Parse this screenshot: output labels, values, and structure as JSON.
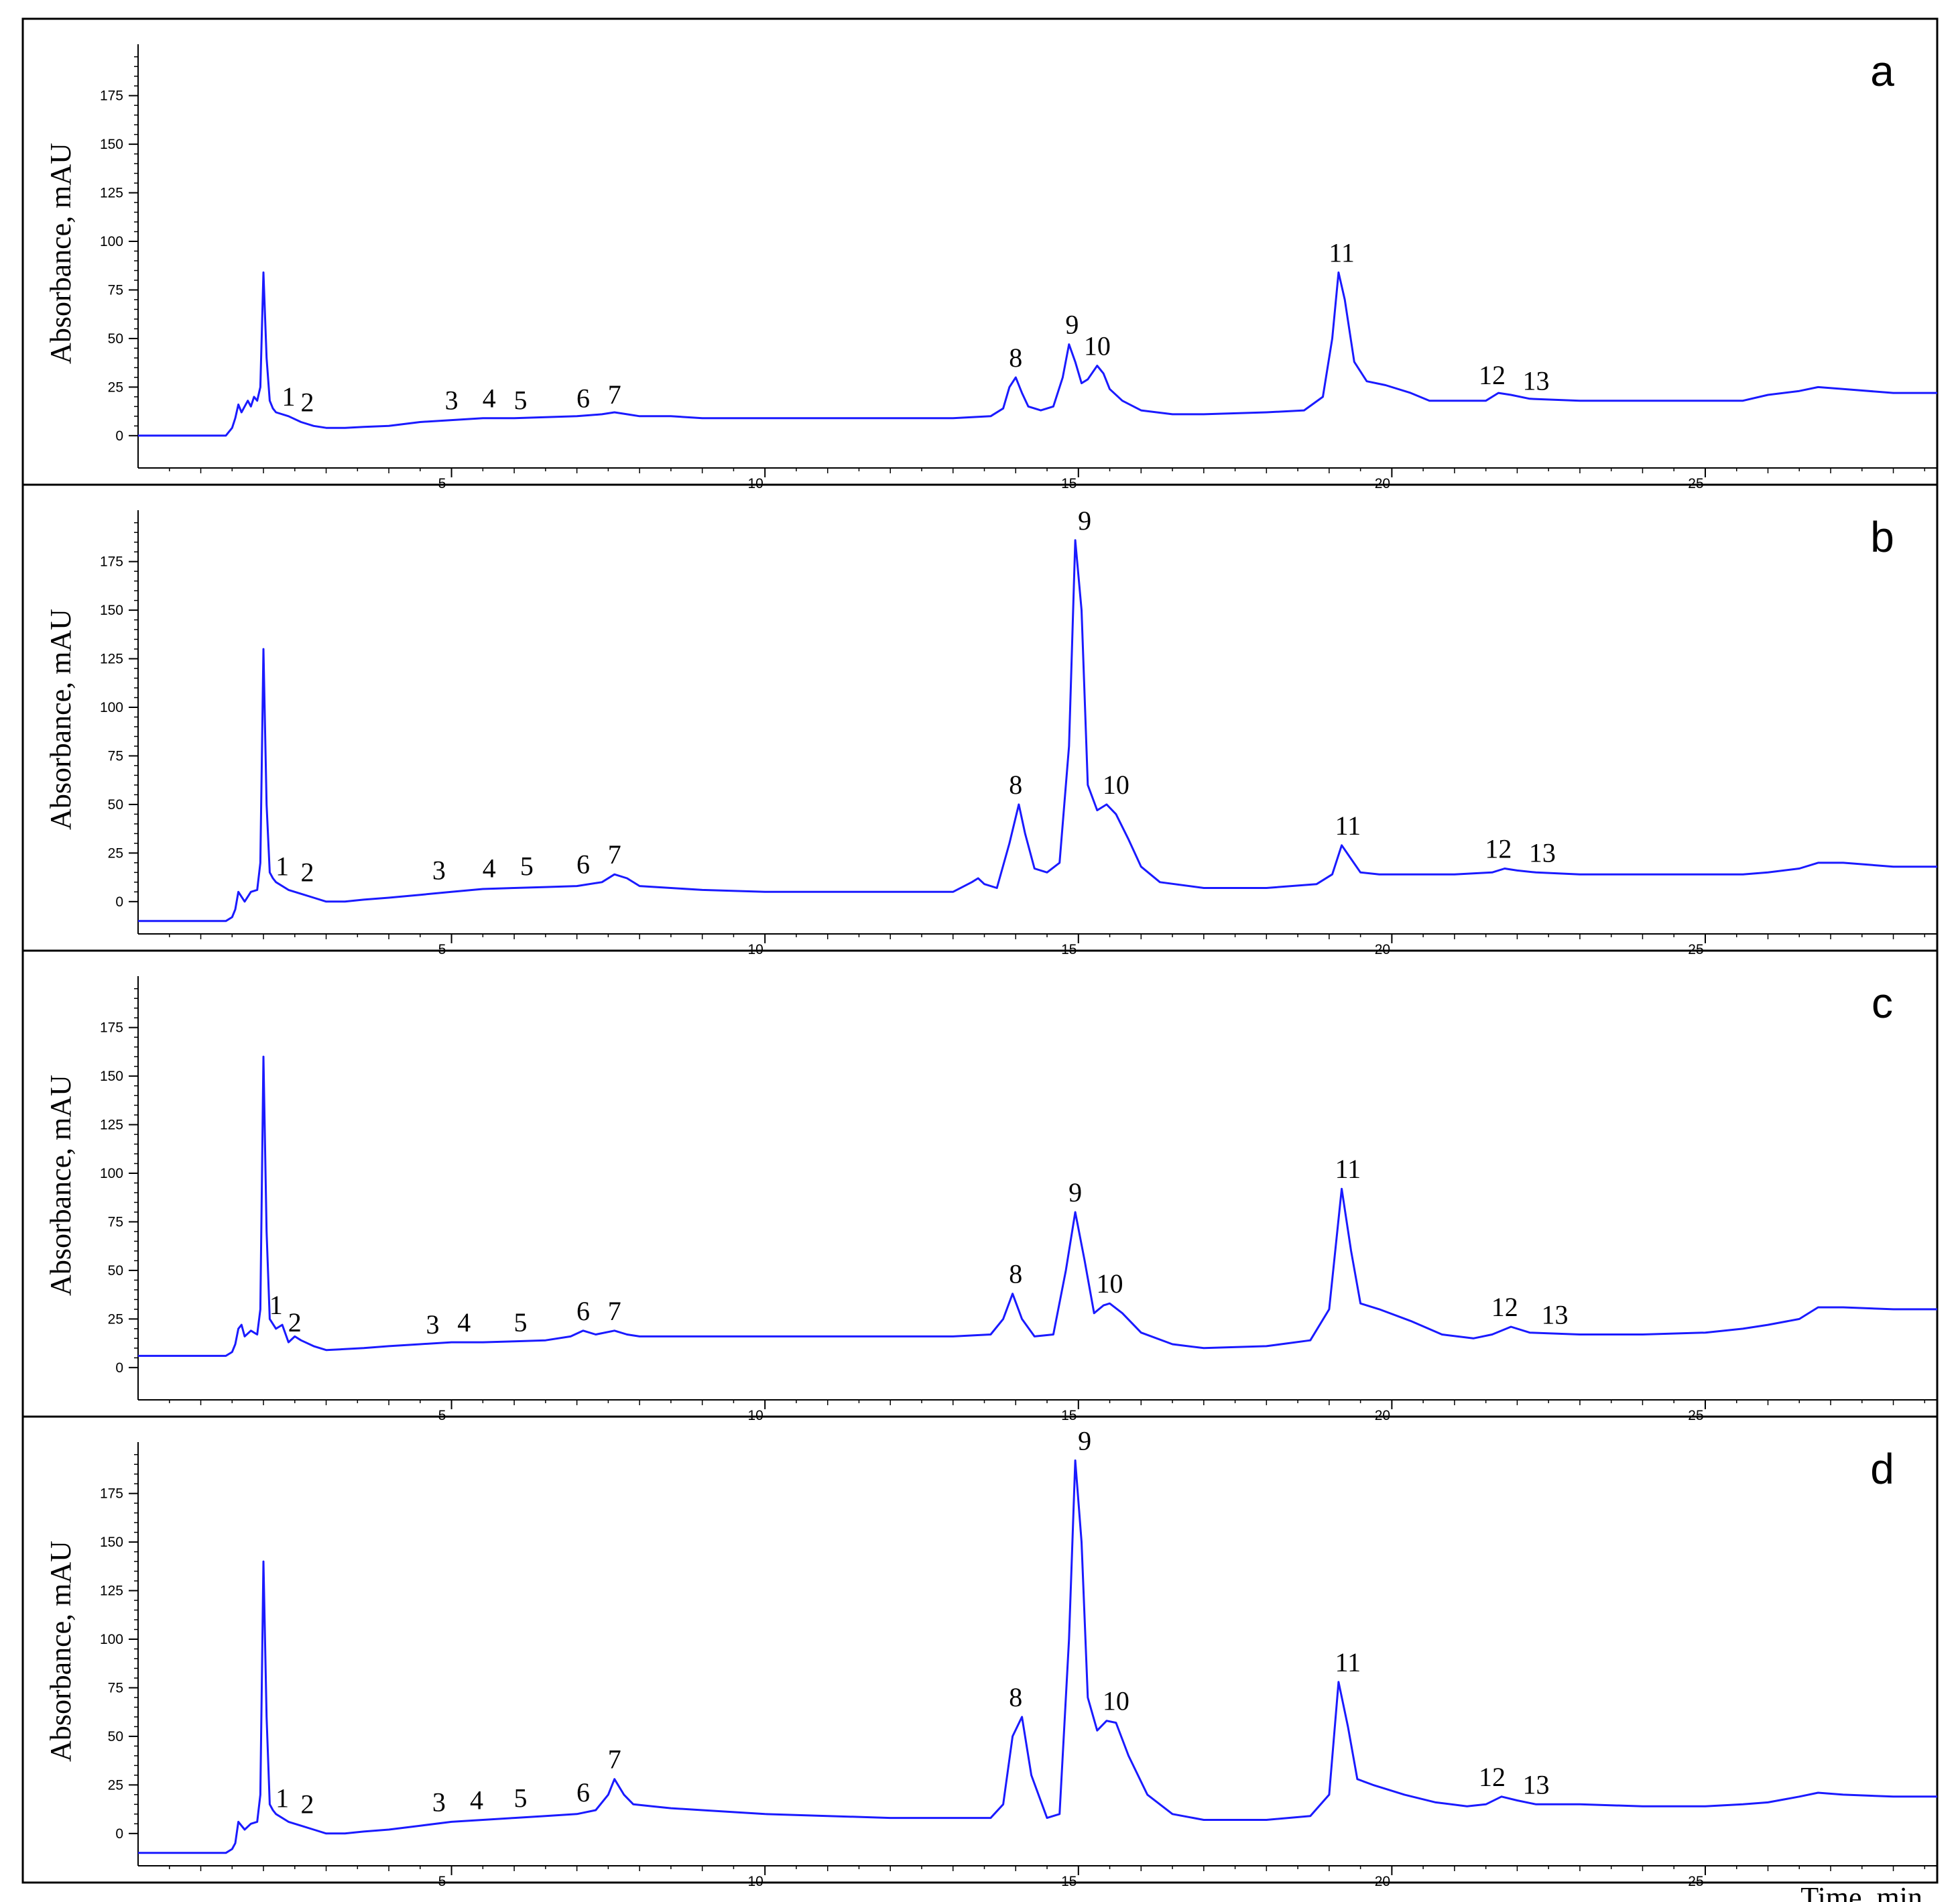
{
  "figure": {
    "x_axis_label": "Time, min",
    "line_color": "#1a1aff"
  },
  "chart_data": [
    {
      "type": "line",
      "panel": "a",
      "ylabel": "Absorbance, mAU",
      "xlim": [
        0,
        28.7
      ],
      "ylim": [
        -8,
        198
      ],
      "x_ticks": [
        5,
        10,
        15,
        20,
        25
      ],
      "y_ticks": [
        0,
        25,
        50,
        75,
        100,
        125,
        150,
        175
      ],
      "peak_labels": [
        {
          "label": "1",
          "x": 2.4,
          "y": 10
        },
        {
          "label": "2",
          "x": 2.7,
          "y": 7
        },
        {
          "label": "3",
          "x": 5.0,
          "y": 8
        },
        {
          "label": "4",
          "x": 5.6,
          "y": 9
        },
        {
          "label": "5",
          "x": 6.1,
          "y": 8
        },
        {
          "label": "6",
          "x": 7.1,
          "y": 9
        },
        {
          "label": "7",
          "x": 7.6,
          "y": 11
        },
        {
          "label": "8",
          "x": 14.0,
          "y": 30
        },
        {
          "label": "9",
          "x": 14.9,
          "y": 47
        },
        {
          "label": "10",
          "x": 15.3,
          "y": 36
        },
        {
          "label": "11",
          "x": 19.2,
          "y": 84
        },
        {
          "label": "12",
          "x": 21.6,
          "y": 21
        },
        {
          "label": "13",
          "x": 22.3,
          "y": 18
        }
      ],
      "series": [
        {
          "x": [
            0,
            1.4,
            1.5,
            1.55,
            1.6,
            1.65,
            1.7,
            1.75,
            1.8,
            1.85,
            1.9,
            1.95,
            2.0,
            2.05,
            2.1,
            2.15,
            2.2,
            2.4,
            2.6,
            2.8,
            3.0,
            3.3,
            3.6,
            4.0,
            4.5,
            5.0,
            5.5,
            6.0,
            6.5,
            7.0,
            7.4,
            7.6,
            7.8,
            8.0,
            8.5,
            9.0,
            10,
            11,
            12,
            13,
            13.6,
            13.8,
            13.9,
            14.0,
            14.1,
            14.2,
            14.4,
            14.6,
            14.75,
            14.85,
            14.95,
            15.05,
            15.15,
            15.3,
            15.4,
            15.5,
            15.7,
            16.0,
            16.5,
            17,
            18,
            18.6,
            18.9,
            19.05,
            19.15,
            19.25,
            19.4,
            19.6,
            19.9,
            20.3,
            20.6,
            21.0,
            21.5,
            21.7,
            21.9,
            22.2,
            23,
            24,
            25,
            25.6,
            26.0,
            26.5,
            26.8,
            27.2,
            28.0,
            28.7
          ],
          "y": [
            0,
            0,
            4,
            9,
            16,
            12,
            15,
            18,
            15,
            20,
            18,
            25,
            84,
            40,
            18,
            14,
            12,
            10,
            7,
            5,
            4,
            4,
            4.5,
            5,
            7,
            8,
            9,
            9,
            9.5,
            10,
            11,
            12,
            11,
            10,
            10,
            9,
            9,
            9,
            9,
            9,
            10,
            14,
            25,
            30,
            22,
            15,
            13,
            15,
            30,
            47,
            38,
            27,
            29,
            36,
            32,
            24,
            18,
            13,
            11,
            11,
            12,
            13,
            20,
            50,
            84,
            70,
            38,
            28,
            26,
            22,
            18,
            18,
            18,
            22,
            21,
            19,
            18,
            18,
            18,
            18,
            21,
            23,
            25,
            24,
            22,
            22
          ]
        }
      ]
    },
    {
      "type": "line",
      "panel": "b",
      "ylabel": "Absorbance, mAU",
      "xlim": [
        0,
        28.7
      ],
      "ylim": [
        -8,
        198
      ],
      "x_ticks": [
        5,
        10,
        15,
        20,
        25
      ],
      "y_ticks": [
        0,
        25,
        50,
        75,
        100,
        125,
        150,
        175
      ],
      "peak_labels": [
        {
          "label": "1",
          "x": 2.3,
          "y": 8
        },
        {
          "label": "2",
          "x": 2.7,
          "y": 5
        },
        {
          "label": "3",
          "x": 4.8,
          "y": 6
        },
        {
          "label": "4",
          "x": 5.6,
          "y": 7
        },
        {
          "label": "5",
          "x": 6.2,
          "y": 8
        },
        {
          "label": "6",
          "x": 7.1,
          "y": 9
        },
        {
          "label": "7",
          "x": 7.6,
          "y": 14
        },
        {
          "label": "8",
          "x": 14.0,
          "y": 50
        },
        {
          "label": "9",
          "x": 15.1,
          "y": 186
        },
        {
          "label": "10",
          "x": 15.6,
          "y": 50
        },
        {
          "label": "11",
          "x": 19.3,
          "y": 29
        },
        {
          "label": "12",
          "x": 21.7,
          "y": 17
        },
        {
          "label": "13",
          "x": 22.4,
          "y": 15
        }
      ],
      "series": [
        {
          "x": [
            0,
            1.4,
            1.5,
            1.55,
            1.6,
            1.7,
            1.8,
            1.9,
            1.95,
            2.0,
            2.05,
            2.1,
            2.15,
            2.2,
            2.4,
            2.6,
            2.8,
            3.0,
            3.3,
            3.6,
            4.0,
            4.5,
            5.0,
            5.5,
            6.0,
            6.5,
            7.0,
            7.4,
            7.6,
            7.8,
            8.0,
            8.5,
            9.0,
            10,
            10.7,
            11,
            12,
            13.0,
            13.3,
            13.4,
            13.5,
            13.7,
            13.9,
            14.05,
            14.15,
            14.3,
            14.5,
            14.7,
            14.85,
            14.95,
            15.05,
            15.15,
            15.3,
            15.45,
            15.6,
            15.8,
            16.0,
            16.3,
            17,
            18,
            18.8,
            19.05,
            19.2,
            19.35,
            19.5,
            19.8,
            20.5,
            21.0,
            21.6,
            21.8,
            22.0,
            22.3,
            23,
            24,
            25,
            25.6,
            26.0,
            26.5,
            26.8,
            27.2,
            28.0,
            28.7
          ],
          "y": [
            -10,
            -10,
            -8,
            -4,
            5,
            0,
            5,
            6,
            20,
            130,
            50,
            15,
            12,
            10,
            6,
            4,
            2,
            0,
            0,
            1,
            2,
            3.5,
            5,
            6.5,
            7,
            7.5,
            8,
            10,
            14,
            12,
            8,
            7,
            6,
            5,
            5,
            5,
            5,
            5,
            10,
            12,
            9,
            7,
            30,
            50,
            35,
            17,
            15,
            20,
            80,
            186,
            150,
            60,
            47,
            50,
            45,
            32,
            18,
            10,
            7,
            7,
            9,
            14,
            29,
            22,
            15,
            14,
            14,
            14,
            15,
            17,
            16,
            15,
            14,
            14,
            14,
            14,
            15,
            17,
            20,
            20,
            18,
            18
          ]
        }
      ]
    },
    {
      "type": "line",
      "panel": "c",
      "ylabel": "Absorbance, mAU",
      "xlim": [
        0,
        28.7
      ],
      "ylim": [
        -8,
        198
      ],
      "x_ticks": [
        5,
        10,
        15,
        20,
        25
      ],
      "y_ticks": [
        0,
        25,
        50,
        75,
        100,
        125,
        150,
        175
      ],
      "peak_labels": [
        {
          "label": "1",
          "x": 2.2,
          "y": 22
        },
        {
          "label": "2",
          "x": 2.5,
          "y": 13
        },
        {
          "label": "3",
          "x": 4.7,
          "y": 12
        },
        {
          "label": "4",
          "x": 5.2,
          "y": 13
        },
        {
          "label": "5",
          "x": 6.1,
          "y": 13
        },
        {
          "label": "6",
          "x": 7.1,
          "y": 19
        },
        {
          "label": "7",
          "x": 7.6,
          "y": 19
        },
        {
          "label": "8",
          "x": 14.0,
          "y": 38
        },
        {
          "label": "9",
          "x": 14.95,
          "y": 80
        },
        {
          "label": "10",
          "x": 15.5,
          "y": 33
        },
        {
          "label": "11",
          "x": 19.3,
          "y": 92
        },
        {
          "label": "12",
          "x": 21.8,
          "y": 21
        },
        {
          "label": "13",
          "x": 22.6,
          "y": 17
        }
      ],
      "series": [
        {
          "x": [
            0,
            1.4,
            1.5,
            1.55,
            1.6,
            1.65,
            1.7,
            1.8,
            1.9,
            1.95,
            2.0,
            2.05,
            2.1,
            2.2,
            2.3,
            2.4,
            2.5,
            2.6,
            2.8,
            3.0,
            3.3,
            3.6,
            4.0,
            4.5,
            5.0,
            5.5,
            6.0,
            6.5,
            6.9,
            7.1,
            7.3,
            7.6,
            7.8,
            8.0,
            9,
            10,
            11,
            12,
            13.0,
            13.6,
            13.8,
            13.95,
            14.1,
            14.3,
            14.6,
            14.8,
            14.95,
            15.1,
            15.25,
            15.4,
            15.5,
            15.7,
            16.0,
            16.5,
            17,
            18,
            18.7,
            19.0,
            19.2,
            19.35,
            19.5,
            19.8,
            20.3,
            20.8,
            21.3,
            21.6,
            21.9,
            22.2,
            23,
            24,
            25,
            25.6,
            26.0,
            26.5,
            26.8,
            27.2,
            28.0,
            28.7
          ],
          "y": [
            6,
            6,
            8,
            12,
            20,
            22,
            16,
            19,
            17,
            30,
            160,
            70,
            25,
            20,
            22,
            13,
            16,
            14,
            11,
            9,
            9.5,
            10,
            11,
            12,
            13,
            13,
            13.5,
            14,
            16,
            19,
            17,
            19,
            17,
            16,
            16,
            16,
            16,
            16,
            16,
            17,
            25,
            38,
            25,
            16,
            17,
            50,
            80,
            55,
            28,
            32,
            33,
            28,
            18,
            12,
            10,
            11,
            14,
            30,
            92,
            60,
            33,
            30,
            24,
            17,
            15,
            17,
            21,
            18,
            17,
            17,
            18,
            20,
            22,
            25,
            31,
            31,
            30,
            30
          ]
        }
      ]
    },
    {
      "type": "line",
      "panel": "d",
      "ylabel": "Absorbance, mAU",
      "xlabel": "Time, min",
      "xlim": [
        0,
        28.7
      ],
      "ylim": [
        -8,
        198
      ],
      "x_ticks": [
        5,
        10,
        15,
        20,
        25
      ],
      "y_ticks": [
        0,
        25,
        50,
        75,
        100,
        125,
        150,
        175
      ],
      "peak_labels": [
        {
          "label": "1",
          "x": 2.3,
          "y": 8
        },
        {
          "label": "2",
          "x": 2.7,
          "y": 5
        },
        {
          "label": "3",
          "x": 4.8,
          "y": 6
        },
        {
          "label": "4",
          "x": 5.4,
          "y": 7
        },
        {
          "label": "5",
          "x": 6.1,
          "y": 8
        },
        {
          "label": "6",
          "x": 7.1,
          "y": 11
        },
        {
          "label": "7",
          "x": 7.6,
          "y": 28
        },
        {
          "label": "8",
          "x": 14.0,
          "y": 60
        },
        {
          "label": "9",
          "x": 15.1,
          "y": 192
        },
        {
          "label": "10",
          "x": 15.6,
          "y": 58
        },
        {
          "label": "11",
          "x": 19.3,
          "y": 78
        },
        {
          "label": "12",
          "x": 21.6,
          "y": 19
        },
        {
          "label": "13",
          "x": 22.3,
          "y": 15
        }
      ],
      "series": [
        {
          "x": [
            0,
            1.4,
            1.5,
            1.55,
            1.6,
            1.7,
            1.8,
            1.9,
            1.95,
            2.0,
            2.05,
            2.1,
            2.15,
            2.2,
            2.4,
            2.6,
            2.8,
            3.0,
            3.3,
            3.6,
            4.0,
            4.5,
            5.0,
            5.5,
            6.0,
            6.5,
            7.0,
            7.3,
            7.5,
            7.6,
            7.75,
            7.9,
            8.2,
            8.5,
            9,
            10,
            11,
            12,
            13,
            13.6,
            13.8,
            13.95,
            14.1,
            14.25,
            14.5,
            14.7,
            14.85,
            14.95,
            15.05,
            15.15,
            15.3,
            15.45,
            15.6,
            15.8,
            16.1,
            16.5,
            17,
            18,
            18.7,
            19.0,
            19.15,
            19.3,
            19.45,
            19.7,
            20.2,
            20.7,
            21.2,
            21.5,
            21.75,
            22.0,
            22.3,
            23,
            24,
            25,
            25.6,
            26.0,
            26.5,
            26.8,
            27.2,
            28.0,
            28.7
          ],
          "y": [
            -10,
            -10,
            -8,
            -5,
            6,
            2,
            5,
            6,
            20,
            140,
            60,
            15,
            12,
            10,
            6,
            4,
            2,
            0,
            0,
            1,
            2,
            4,
            6,
            7,
            8,
            9,
            10,
            12,
            20,
            28,
            20,
            15,
            14,
            13,
            12,
            10,
            9,
            8,
            8,
            8,
            15,
            50,
            60,
            30,
            8,
            10,
            100,
            192,
            150,
            70,
            53,
            58,
            57,
            40,
            20,
            10,
            7,
            7,
            9,
            20,
            78,
            55,
            28,
            25,
            20,
            16,
            14,
            15,
            19,
            17,
            15,
            15,
            14,
            14,
            15,
            16,
            19,
            21,
            20,
            19,
            19
          ]
        }
      ]
    }
  ]
}
